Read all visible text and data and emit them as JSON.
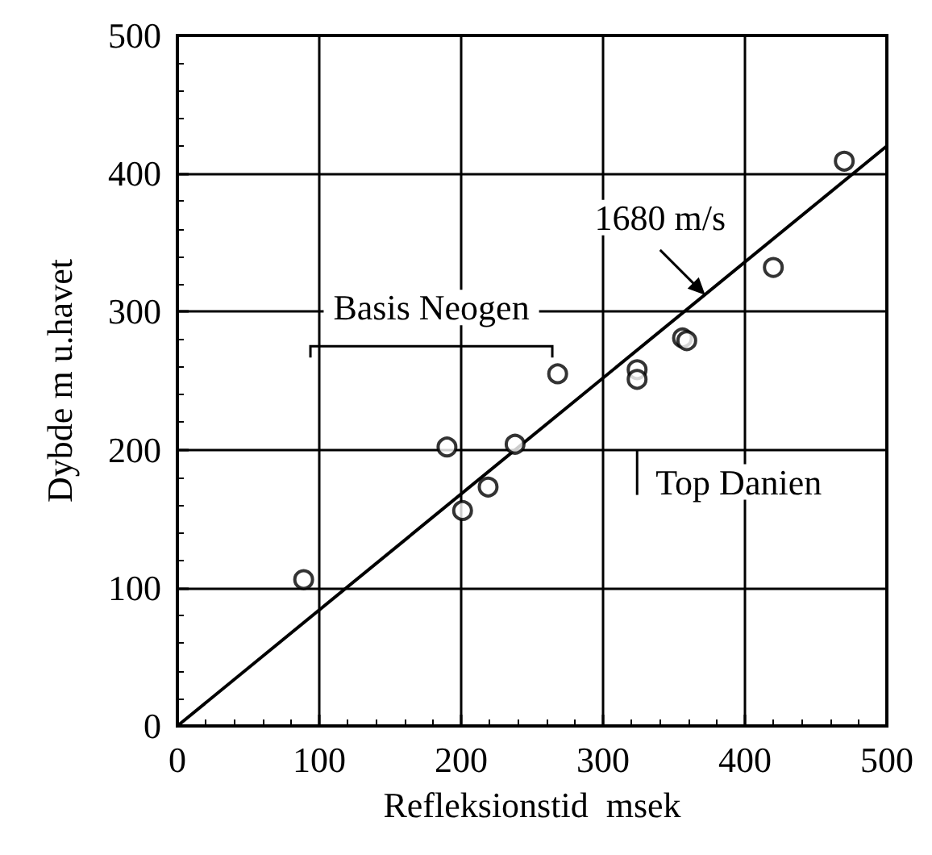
{
  "chart_data": {
    "type": "scatter",
    "xlabel": "Refleksionstid  msek",
    "ylabel": "Dybde m u.havet",
    "xlim": [
      0,
      500
    ],
    "ylim": [
      0,
      500
    ],
    "xticks": [
      0,
      100,
      200,
      300,
      400,
      500
    ],
    "yticks": [
      0,
      100,
      200,
      300,
      400,
      500
    ],
    "grid": true,
    "series": [
      {
        "marker": "circle",
        "color": "#000000",
        "x": [
          89,
          190,
          201,
          219,
          238,
          268,
          324,
          324,
          356,
          359,
          420,
          470
        ],
        "values": [
          106,
          202,
          156,
          173,
          204,
          255,
          258,
          251,
          281,
          279,
          332,
          409
        ]
      },
      {
        "type": "line",
        "marker": "none",
        "color": "#000000",
        "x": [
          0,
          500
        ],
        "values": [
          0,
          420
        ]
      }
    ],
    "annotations": [
      "Basis Neogen",
      {
        "text": "1680 m/s",
        "x": 372,
        "y": 312
      },
      "Top Danien"
    ]
  }
}
